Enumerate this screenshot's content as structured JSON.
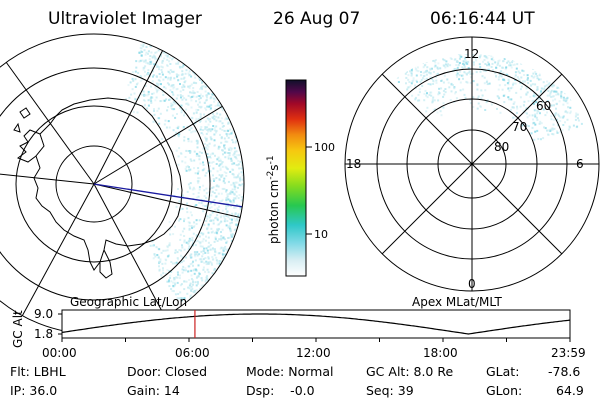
{
  "header": {
    "title": "Ultraviolet Imager",
    "date": "26 Aug 07",
    "time": "06:16:44 UT"
  },
  "left_map": {
    "caption": "Geographic Lat/Lon"
  },
  "right_map": {
    "caption": "Apex MLat/MLT",
    "mlt_labels": [
      "12",
      "18",
      "6",
      "0"
    ],
    "lat_labels": [
      "60",
      "70",
      "80"
    ]
  },
  "colorbar": {
    "label": "photon cm",
    "label_sup1": "-2",
    "label_mid": "s",
    "label_sup2": "-1",
    "ticks": [
      "100",
      "10"
    ]
  },
  "altitude_plot": {
    "ylabel": "GC Alt",
    "yticks": [
      "9.0",
      "1.8"
    ],
    "xticks": [
      "00:00",
      "06:00",
      "12:00",
      "18:00",
      "23:59"
    ],
    "marker_time_hours": 6.28
  },
  "info": {
    "row1": {
      "flt": "Flt: LBHL",
      "door": "Door: Closed",
      "mode": "Mode: Normal",
      "gcalt": "GC Alt: 8.0 Re",
      "glat_label": "GLat:",
      "glat_value": "-78.6"
    },
    "row2": {
      "ip": "IP: 36.0",
      "gain": "Gain: 14",
      "dsp": "Dsp:    -0.0",
      "seq": "Seq: 39",
      "glon_label": "GLon:",
      "glon_value": "64.9"
    }
  },
  "colors": {
    "aurora_cyan": "#bfe9f0",
    "aurora_strong": "#7fd6e6",
    "satellite_line": "#1a1aa0",
    "marker_red": "#cc2222"
  }
}
